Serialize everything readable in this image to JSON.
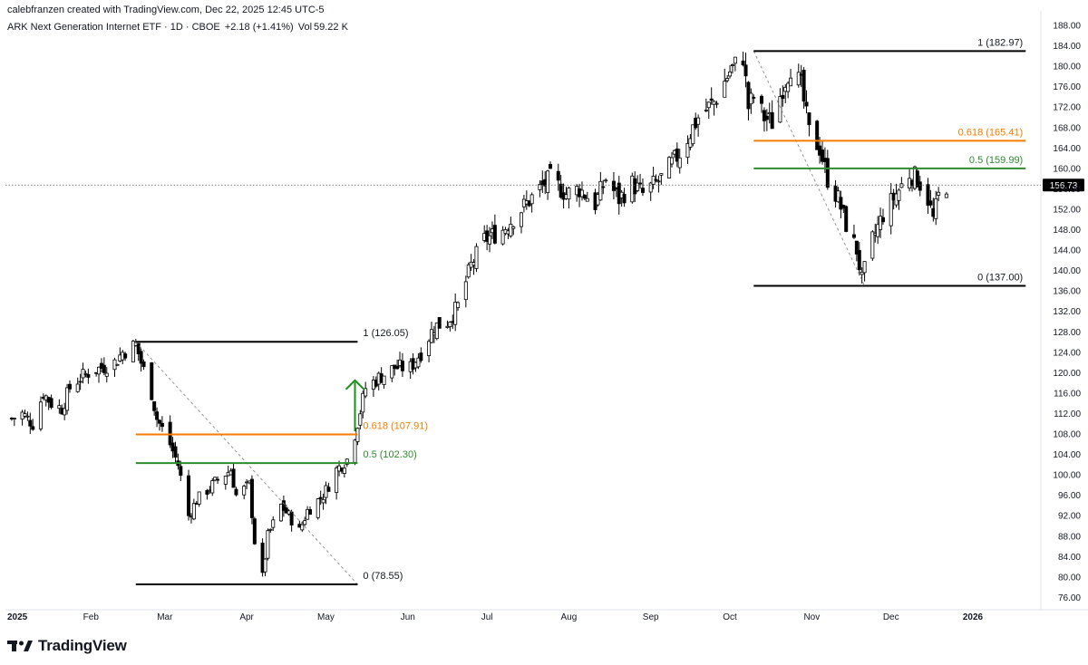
{
  "header": {
    "credit": "calebfranzen created with TradingView.com, Dec 22, 2025 12:45 UTC-5",
    "symbol": "ARK Next Generation Internet ETF · 1D · CBOE",
    "change": "+2.18 (+1.41%)",
    "volume_label": "Vol",
    "volume": "59.22 K"
  },
  "brand": {
    "name": "TradingView",
    "logo_icon": "tradingview-logo-icon"
  },
  "colors": {
    "up": "#ffffff",
    "down": "#000000",
    "fib_1": "#000000",
    "fib_618": "#f57c00",
    "fib_05": "#2e8b2e",
    "arrow": "#1e8c1e",
    "price_tag": "#000000"
  },
  "chart_data": {
    "type": "candlestick",
    "title": "ARK Next Generation Internet ETF",
    "interval": "1D",
    "exchange": "CBOE",
    "ylim": [
      74,
      188
    ],
    "y_ticks": [
      "188.00",
      "184.00",
      "180.00",
      "176.00",
      "172.00",
      "168.00",
      "164.00",
      "160.00",
      "156.00",
      "152.00",
      "148.00",
      "144.00",
      "140.00",
      "136.00",
      "132.00",
      "128.00",
      "124.00",
      "120.00",
      "116.00",
      "112.00",
      "108.00",
      "104.00",
      "100.00",
      "96.00",
      "92.00",
      "88.00",
      "84.00",
      "80.00",
      "76.00"
    ],
    "x_ticks": [
      {
        "label": "2025",
        "date": "2025-01-01",
        "bold": true
      },
      {
        "label": "Feb",
        "date": "2025-02-01"
      },
      {
        "label": "Mar",
        "date": "2025-03-01"
      },
      {
        "label": "Apr",
        "date": "2025-04-01"
      },
      {
        "label": "May",
        "date": "2025-05-01"
      },
      {
        "label": "Jun",
        "date": "2025-06-01"
      },
      {
        "label": "Jul",
        "date": "2025-07-01"
      },
      {
        "label": "Aug",
        "date": "2025-08-01"
      },
      {
        "label": "Sep",
        "date": "2025-09-01"
      },
      {
        "label": "Oct",
        "date": "2025-10-01"
      },
      {
        "label": "Nov",
        "date": "2025-11-01"
      },
      {
        "label": "Dec",
        "date": "2025-12-01"
      },
      {
        "label": "2026",
        "date": "2026-01-01",
        "bold": true
      }
    ],
    "last_price": {
      "value": 156.73,
      "label": "156.73"
    },
    "close_path": [
      [
        "2025-01-02",
        111
      ],
      [
        "2025-01-06",
        112
      ],
      [
        "2025-01-10",
        110
      ],
      [
        "2025-01-14",
        116
      ],
      [
        "2025-01-17",
        114
      ],
      [
        "2025-01-21",
        113
      ],
      [
        "2025-01-24",
        117
      ],
      [
        "2025-01-28",
        119
      ],
      [
        "2025-01-31",
        120
      ],
      [
        "2025-02-05",
        121
      ],
      [
        "2025-02-10",
        122
      ],
      [
        "2025-02-13",
        124
      ],
      [
        "2025-02-18",
        125.5
      ],
      [
        "2025-02-20",
        122
      ],
      [
        "2025-02-24",
        116
      ],
      [
        "2025-02-26",
        111
      ],
      [
        "2025-03-03",
        106
      ],
      [
        "2025-03-06",
        102
      ],
      [
        "2025-03-10",
        92
      ],
      [
        "2025-03-13",
        95
      ],
      [
        "2025-03-17",
        97
      ],
      [
        "2025-03-21",
        99
      ],
      [
        "2025-03-26",
        101
      ],
      [
        "2025-03-28",
        96
      ],
      [
        "2025-04-02",
        98
      ],
      [
        "2025-04-04",
        87
      ],
      [
        "2025-04-07",
        80
      ],
      [
        "2025-04-09",
        88
      ],
      [
        "2025-04-14",
        94
      ],
      [
        "2025-04-17",
        92
      ],
      [
        "2025-04-21",
        89
      ],
      [
        "2025-04-24",
        93
      ],
      [
        "2025-04-30",
        96
      ],
      [
        "2025-05-05",
        101
      ],
      [
        "2025-05-09",
        103
      ],
      [
        "2025-05-12",
        108
      ],
      [
        "2025-05-16",
        117
      ],
      [
        "2025-05-21",
        119
      ],
      [
        "2025-05-27",
        121
      ],
      [
        "2025-06-02",
        121
      ],
      [
        "2025-06-06",
        124
      ],
      [
        "2025-06-11",
        129
      ],
      [
        "2025-06-16",
        130
      ],
      [
        "2025-06-20",
        133
      ],
      [
        "2025-06-25",
        141
      ],
      [
        "2025-06-30",
        146
      ],
      [
        "2025-07-07",
        148
      ],
      [
        "2025-07-14",
        152
      ],
      [
        "2025-07-21",
        156
      ],
      [
        "2025-07-25",
        158
      ],
      [
        "2025-07-31",
        155
      ],
      [
        "2025-08-05",
        156
      ],
      [
        "2025-08-11",
        153
      ],
      [
        "2025-08-15",
        158
      ],
      [
        "2025-08-20",
        154
      ],
      [
        "2025-08-25",
        157
      ],
      [
        "2025-08-29",
        155
      ],
      [
        "2025-09-05",
        158
      ],
      [
        "2025-09-12",
        163
      ],
      [
        "2025-09-19",
        170
      ],
      [
        "2025-09-25",
        173
      ],
      [
        "2025-10-01",
        179
      ],
      [
        "2025-10-06",
        182
      ],
      [
        "2025-10-08",
        172
      ],
      [
        "2025-10-10",
        174
      ],
      [
        "2025-10-14",
        170
      ],
      [
        "2025-10-17",
        169
      ],
      [
        "2025-10-21",
        176
      ],
      [
        "2025-10-24",
        180
      ],
      [
        "2025-10-28",
        176
      ],
      [
        "2025-10-31",
        167
      ],
      [
        "2025-11-04",
        164
      ],
      [
        "2025-11-07",
        158
      ],
      [
        "2025-11-11",
        154
      ],
      [
        "2025-11-14",
        149
      ],
      [
        "2025-11-18",
        144
      ],
      [
        "2025-11-20",
        138
      ],
      [
        "2025-11-24",
        146
      ],
      [
        "2025-11-28",
        151
      ],
      [
        "2025-12-03",
        155
      ],
      [
        "2025-12-08",
        159
      ],
      [
        "2025-12-11",
        158
      ],
      [
        "2025-12-15",
        154
      ],
      [
        "2025-12-17",
        150
      ],
      [
        "2025-12-19",
        154.5
      ],
      [
        "2025-12-22",
        156.73
      ]
    ],
    "fib_retracements": [
      {
        "levels": [
          {
            "label": "1 (126.05)",
            "value": 126.05,
            "color": "#000000"
          },
          {
            "label": "0.618 (107.91)",
            "value": 107.91,
            "color": "#f57c00"
          },
          {
            "label": "0.5 (102.30)",
            "value": 102.3,
            "color": "#2e8b2e"
          },
          {
            "label": "0 (78.55)",
            "value": 78.55,
            "color": "#000000"
          }
        ],
        "start_date": "2025-02-18",
        "end_date": "2025-05-13",
        "trend_from": [
          "2025-02-18",
          126.05
        ],
        "trend_to": [
          "2025-05-13",
          78.55
        ]
      },
      {
        "levels": [
          {
            "label": "1 (182.97)",
            "value": 182.97,
            "color": "#000000"
          },
          {
            "label": "0.618 (165.41)",
            "value": 165.41,
            "color": "#f57c00"
          },
          {
            "label": "0.5 (159.99)",
            "value": 159.99,
            "color": "#2e8b2e"
          },
          {
            "label": "0 (137.00)",
            "value": 137.0,
            "color": "#000000"
          }
        ],
        "start_date": "2025-10-10",
        "end_date": "2026-01-21",
        "trend_from": [
          "2025-10-10",
          182.97
        ],
        "trend_to": [
          "2025-11-21",
          137.0
        ]
      }
    ],
    "arrow": {
      "date": "2025-05-12",
      "from": 108.5,
      "to": 118.5
    }
  }
}
